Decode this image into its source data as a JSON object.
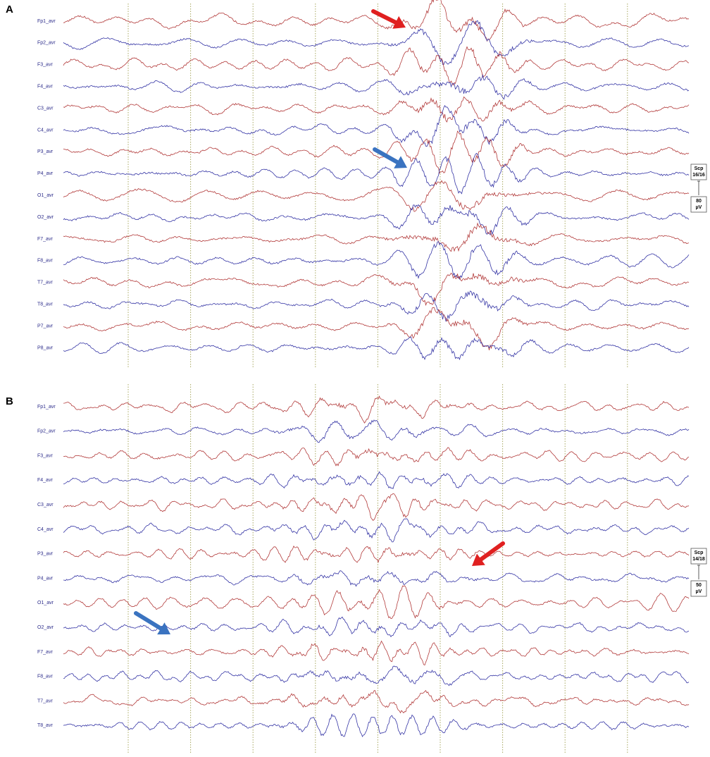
{
  "panels": [
    {
      "label": "A",
      "channels": [
        "Fp1_avr",
        "Fp2_avr",
        "F3_avr",
        "F4_avr",
        "C3_avr",
        "C4_avr",
        "P3_avr",
        "P4_avr",
        "O1_avr",
        "O2_avr",
        "F7_avr",
        "F8_avr",
        "T7_avr",
        "T8_avr",
        "P7_avr",
        "P8_avr"
      ],
      "scale": {
        "montage": "Scp",
        "ratio": "16/16",
        "amplitude": "80",
        "unit": "µV"
      }
    },
    {
      "label": "B",
      "channels": [
        "Fp1_avr",
        "Fp2_avr",
        "F3_avr",
        "F4_avr",
        "C3_avr",
        "C4_avr",
        "P3_avr",
        "P4_avr",
        "O1_avr",
        "O2_avr",
        "F7_avr",
        "F8_avr",
        "T7_avr",
        "T8_avr"
      ],
      "scale": {
        "montage": "Scp",
        "ratio": "14/18",
        "amplitude": "50",
        "unit": "µV"
      }
    }
  ]
}
